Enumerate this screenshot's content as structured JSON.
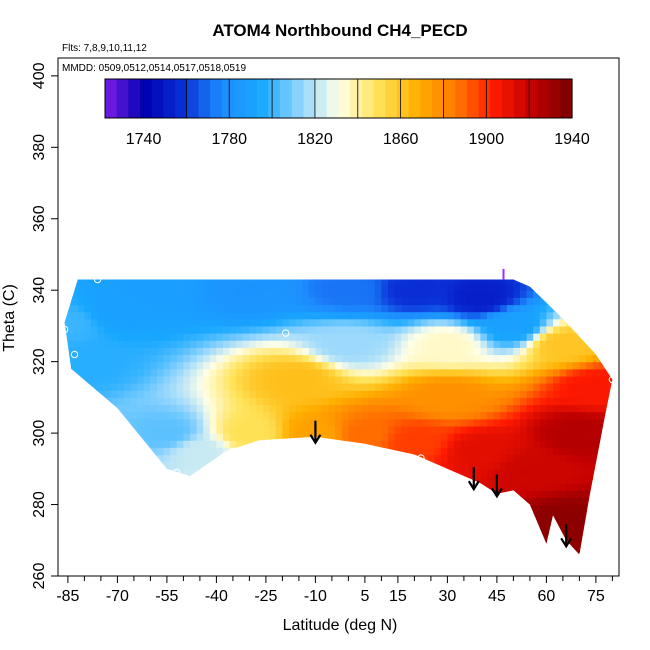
{
  "chart_data": {
    "type": "heatmap",
    "title": "ATOM4 Northbound CH4_PECD",
    "flights_note": "Flts: 7,8,9,10,11,12",
    "dates_note": "MMDD: 0509,0512,0514,0517,0518,0519",
    "xlabel": "Latitude (deg N)",
    "ylabel": "Theta (C)",
    "xlim": [
      -88,
      82
    ],
    "ylim": [
      260,
      405
    ],
    "x_ticks": [
      -85,
      -70,
      -55,
      -40,
      -25,
      -10,
      5,
      15,
      30,
      45,
      60,
      75
    ],
    "y_ticks": [
      260,
      280,
      300,
      320,
      340,
      360,
      380,
      400
    ],
    "colorbar": {
      "range": [
        1722,
        1940
      ],
      "ticks": [
        1740,
        1780,
        1820,
        1860,
        1900,
        1940
      ],
      "colors": [
        "#7b1fe8",
        "#0000b0",
        "#0a2fd6",
        "#1e8cff",
        "#18a8ff",
        "#8fd4ff",
        "#ffffe8",
        "#ffe35a",
        "#ffb000",
        "#ff7a00",
        "#ff1a00",
        "#c00000",
        "#7a0000"
      ]
    },
    "region_outline": [
      {
        "lat": -86,
        "theta": 331
      },
      {
        "lat": -84,
        "theta": 318
      },
      {
        "lat": -70,
        "theta": 307
      },
      {
        "lat": -55,
        "theta": 290
      },
      {
        "lat": -48,
        "theta": 288
      },
      {
        "lat": -37,
        "theta": 295
      },
      {
        "lat": -27,
        "theta": 298
      },
      {
        "lat": -10,
        "theta": 299
      },
      {
        "lat": 5,
        "theta": 297
      },
      {
        "lat": 20,
        "theta": 294
      },
      {
        "lat": 40,
        "theta": 286
      },
      {
        "lat": 45,
        "theta": 283
      },
      {
        "lat": 50,
        "theta": 284
      },
      {
        "lat": 55,
        "theta": 280
      },
      {
        "lat": 60,
        "theta": 269
      },
      {
        "lat": 62,
        "theta": 277
      },
      {
        "lat": 66,
        "theta": 270
      },
      {
        "lat": 70,
        "theta": 266
      },
      {
        "lat": 73,
        "theta": 282
      },
      {
        "lat": 78,
        "theta": 306
      },
      {
        "lat": 80,
        "theta": 315
      },
      {
        "lat": 75,
        "theta": 322
      },
      {
        "lat": 65,
        "theta": 332
      },
      {
        "lat": 55,
        "theta": 341
      },
      {
        "lat": 50,
        "theta": 343
      },
      {
        "lat": -82,
        "theta": 343
      }
    ],
    "color_stops": [
      {
        "lat": -86,
        "theta": 331,
        "ch4": 1800
      },
      {
        "lat": -80,
        "theta": 320,
        "ch4": 1797
      },
      {
        "lat": -70,
        "theta": 335,
        "ch4": 1790
      },
      {
        "lat": -55,
        "theta": 300,
        "ch4": 1805
      },
      {
        "lat": -45,
        "theta": 295,
        "ch4": 1822
      },
      {
        "lat": -30,
        "theta": 300,
        "ch4": 1850
      },
      {
        "lat": -15,
        "theta": 315,
        "ch4": 1862
      },
      {
        "lat": -10,
        "theta": 300,
        "ch4": 1872
      },
      {
        "lat": 5,
        "theta": 300,
        "ch4": 1888
      },
      {
        "lat": 20,
        "theta": 298,
        "ch4": 1897
      },
      {
        "lat": 30,
        "theta": 310,
        "ch4": 1878
      },
      {
        "lat": 40,
        "theta": 295,
        "ch4": 1912
      },
      {
        "lat": 55,
        "theta": 290,
        "ch4": 1918
      },
      {
        "lat": 65,
        "theta": 275,
        "ch4": 1935
      },
      {
        "lat": 70,
        "theta": 300,
        "ch4": 1925
      },
      {
        "lat": 75,
        "theta": 313,
        "ch4": 1905
      },
      {
        "lat": 65,
        "theta": 325,
        "ch4": 1860
      },
      {
        "lat": 50,
        "theta": 330,
        "ch4": 1790
      },
      {
        "lat": 40,
        "theta": 338,
        "ch4": 1752
      },
      {
        "lat": 20,
        "theta": 340,
        "ch4": 1758
      },
      {
        "lat": 0,
        "theta": 340,
        "ch4": 1772
      },
      {
        "lat": -30,
        "theta": 340,
        "ch4": 1782
      },
      {
        "lat": -60,
        "theta": 340,
        "ch4": 1788
      },
      {
        "lat": 0,
        "theta": 325,
        "ch4": 1815
      },
      {
        "lat": 30,
        "theta": 325,
        "ch4": 1835
      }
    ],
    "arrows": [
      {
        "lat": -10,
        "theta": 299
      },
      {
        "lat": 38,
        "theta": 286
      },
      {
        "lat": 45,
        "theta": 284
      },
      {
        "lat": 66,
        "theta": 270
      }
    ],
    "markers": [
      {
        "lat": -76,
        "theta": 343
      },
      {
        "lat": -86,
        "theta": 329
      },
      {
        "lat": -83,
        "theta": 322
      },
      {
        "lat": -52,
        "theta": 289
      },
      {
        "lat": -19,
        "theta": 328
      },
      {
        "lat": 22,
        "theta": 293
      },
      {
        "lat": 71,
        "theta": 266
      },
      {
        "lat": 80,
        "theta": 315
      }
    ],
    "vertical_marker": {
      "lat": 47,
      "theta": 344
    }
  }
}
